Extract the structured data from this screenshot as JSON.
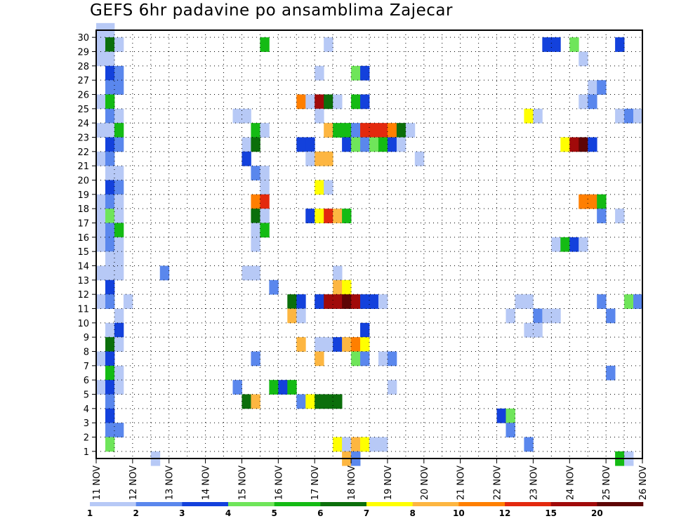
{
  "chart_data": {
    "type": "heatmap",
    "title": "GEFS 6hr padavine po ansamblima Zajecar",
    "xlabel": "",
    "ylabel": "",
    "x_ticks": [
      "11 NOV",
      "12 NOV",
      "13 NOV",
      "14 NOV",
      "15 NOV",
      "16 NOV",
      "17 NOV",
      "18 NOV",
      "19 NOV",
      "20 NOV",
      "21 NOV",
      "22 NOV",
      "23 NOV",
      "24 NOV",
      "25 NOV",
      "26 NOV"
    ],
    "y_ticks": [
      1,
      2,
      3,
      4,
      5,
      6,
      7,
      8,
      9,
      10,
      11,
      12,
      13,
      14,
      15,
      16,
      17,
      18,
      19,
      20,
      21,
      22,
      23,
      24,
      25,
      26,
      27,
      28,
      29,
      30
    ],
    "xlim": [
      0,
      60
    ],
    "ylim": [
      0,
      30
    ],
    "grid": true,
    "color_levels": [
      1,
      2,
      3,
      4,
      5,
      6,
      7,
      8,
      10,
      12,
      15,
      20
    ],
    "colors": [
      "#b7c9f6",
      "#5a87ed",
      "#1341dc",
      "#6fe55a",
      "#14bb14",
      "#0b6f0b",
      "#ffff00",
      "#fdb641",
      "#ff7f00",
      "#e3290e",
      "#a10a0a",
      "#5e0505"
    ],
    "legend_labels": [
      "1",
      "2",
      "3",
      "4",
      "5",
      "6",
      "7",
      "8",
      "10",
      "12",
      "15",
      "20"
    ],
    "cells": [
      [
        0,
        30,
        0
      ],
      [
        1,
        30,
        0
      ],
      [
        0,
        29,
        0
      ],
      [
        1,
        29,
        5
      ],
      [
        2,
        29,
        0
      ],
      [
        18,
        29,
        4
      ],
      [
        25,
        29,
        0
      ],
      [
        49,
        29,
        2
      ],
      [
        50,
        29,
        2
      ],
      [
        52,
        29,
        3
      ],
      [
        57,
        29,
        2
      ],
      [
        0,
        28,
        0
      ],
      [
        1,
        28,
        0
      ],
      [
        53,
        28,
        0
      ],
      [
        1,
        27,
        2
      ],
      [
        2,
        27,
        1
      ],
      [
        24,
        27,
        0
      ],
      [
        28,
        27,
        3
      ],
      [
        29,
        27,
        2
      ],
      [
        1,
        26,
        1
      ],
      [
        2,
        26,
        1
      ],
      [
        54,
        26,
        0
      ],
      [
        55,
        26,
        1
      ],
      [
        0,
        25,
        0
      ],
      [
        1,
        25,
        4
      ],
      [
        22,
        25,
        8
      ],
      [
        23,
        25,
        0
      ],
      [
        24,
        25,
        10
      ],
      [
        25,
        25,
        5
      ],
      [
        26,
        25,
        0
      ],
      [
        28,
        25,
        4
      ],
      [
        29,
        25,
        2
      ],
      [
        53,
        25,
        0
      ],
      [
        54,
        25,
        1
      ],
      [
        1,
        24,
        1
      ],
      [
        2,
        24,
        0
      ],
      [
        15,
        24,
        0
      ],
      [
        16,
        24,
        0
      ],
      [
        24,
        24,
        0
      ],
      [
        47,
        24,
        6
      ],
      [
        48,
        24,
        0
      ],
      [
        57,
        24,
        0
      ],
      [
        58,
        24,
        1
      ],
      [
        59,
        24,
        0
      ],
      [
        0,
        23,
        0
      ],
      [
        1,
        23,
        0
      ],
      [
        2,
        23,
        4
      ],
      [
        17,
        23,
        4
      ],
      [
        18,
        23,
        0
      ],
      [
        25,
        23,
        7
      ],
      [
        26,
        23,
        4
      ],
      [
        27,
        23,
        4
      ],
      [
        28,
        23,
        1
      ],
      [
        29,
        23,
        9
      ],
      [
        30,
        23,
        9
      ],
      [
        31,
        23,
        9
      ],
      [
        32,
        23,
        8
      ],
      [
        33,
        23,
        5
      ],
      [
        34,
        23,
        0
      ],
      [
        1,
        22,
        2
      ],
      [
        2,
        22,
        1
      ],
      [
        16,
        22,
        0
      ],
      [
        17,
        22,
        5
      ],
      [
        22,
        22,
        2
      ],
      [
        23,
        22,
        2
      ],
      [
        27,
        22,
        2
      ],
      [
        28,
        22,
        3
      ],
      [
        29,
        22,
        1
      ],
      [
        30,
        22,
        3
      ],
      [
        31,
        22,
        4
      ],
      [
        32,
        22,
        2
      ],
      [
        33,
        22,
        0
      ],
      [
        51,
        22,
        6
      ],
      [
        52,
        22,
        10
      ],
      [
        53,
        22,
        11
      ],
      [
        54,
        22,
        2
      ],
      [
        0,
        21,
        0
      ],
      [
        1,
        21,
        1
      ],
      [
        16,
        21,
        2
      ],
      [
        23,
        21,
        0
      ],
      [
        24,
        21,
        7
      ],
      [
        25,
        21,
        7
      ],
      [
        35,
        21,
        0
      ],
      [
        1,
        20,
        0
      ],
      [
        2,
        20,
        0
      ],
      [
        17,
        20,
        1
      ],
      [
        18,
        20,
        0
      ],
      [
        1,
        19,
        2
      ],
      [
        2,
        19,
        1
      ],
      [
        18,
        19,
        0
      ],
      [
        24,
        19,
        6
      ],
      [
        25,
        19,
        0
      ],
      [
        0,
        18,
        0
      ],
      [
        1,
        18,
        1
      ],
      [
        2,
        18,
        0
      ],
      [
        17,
        18,
        8
      ],
      [
        18,
        18,
        9
      ],
      [
        53,
        18,
        8
      ],
      [
        54,
        18,
        8
      ],
      [
        55,
        18,
        4
      ],
      [
        0,
        17,
        0
      ],
      [
        1,
        17,
        3
      ],
      [
        2,
        17,
        0
      ],
      [
        17,
        17,
        5
      ],
      [
        18,
        17,
        0
      ],
      [
        23,
        17,
        2
      ],
      [
        24,
        17,
        6
      ],
      [
        25,
        17,
        9
      ],
      [
        26,
        17,
        7
      ],
      [
        27,
        17,
        4
      ],
      [
        55,
        17,
        1
      ],
      [
        57,
        17,
        0
      ],
      [
        0,
        16,
        0
      ],
      [
        1,
        16,
        1
      ],
      [
        2,
        16,
        4
      ],
      [
        17,
        16,
        0
      ],
      [
        18,
        16,
        4
      ],
      [
        0,
        15,
        0
      ],
      [
        1,
        15,
        1
      ],
      [
        2,
        15,
        0
      ],
      [
        17,
        15,
        0
      ],
      [
        50,
        15,
        0
      ],
      [
        51,
        15,
        4
      ],
      [
        52,
        15,
        2
      ],
      [
        53,
        15,
        0
      ],
      [
        1,
        14,
        0
      ],
      [
        2,
        14,
        0
      ],
      [
        0,
        13,
        0
      ],
      [
        1,
        13,
        0
      ],
      [
        2,
        13,
        0
      ],
      [
        7,
        13,
        1
      ],
      [
        16,
        13,
        0
      ],
      [
        17,
        13,
        0
      ],
      [
        26,
        13,
        0
      ],
      [
        1,
        12,
        2
      ],
      [
        19,
        12,
        1
      ],
      [
        26,
        12,
        7
      ],
      [
        27,
        12,
        6
      ],
      [
        0,
        11,
        0
      ],
      [
        1,
        11,
        1
      ],
      [
        3,
        11,
        0
      ],
      [
        21,
        11,
        5
      ],
      [
        22,
        11,
        2
      ],
      [
        24,
        11,
        2
      ],
      [
        25,
        11,
        10
      ],
      [
        26,
        11,
        10
      ],
      [
        27,
        11,
        11
      ],
      [
        28,
        11,
        10
      ],
      [
        29,
        11,
        2
      ],
      [
        30,
        11,
        2
      ],
      [
        31,
        11,
        0
      ],
      [
        46,
        11,
        0
      ],
      [
        47,
        11,
        0
      ],
      [
        55,
        11,
        1
      ],
      [
        58,
        11,
        3
      ],
      [
        59,
        11,
        1
      ],
      [
        2,
        10,
        0
      ],
      [
        21,
        10,
        7
      ],
      [
        22,
        10,
        0
      ],
      [
        45,
        10,
        0
      ],
      [
        48,
        10,
        1
      ],
      [
        49,
        10,
        0
      ],
      [
        50,
        10,
        0
      ],
      [
        56,
        10,
        1
      ],
      [
        1,
        9,
        0
      ],
      [
        2,
        9,
        2
      ],
      [
        29,
        9,
        2
      ],
      [
        47,
        9,
        0
      ],
      [
        48,
        9,
        0
      ],
      [
        1,
        8,
        5
      ],
      [
        2,
        8,
        0
      ],
      [
        22,
        8,
        7
      ],
      [
        24,
        8,
        0
      ],
      [
        25,
        8,
        0
      ],
      [
        26,
        8,
        2
      ],
      [
        27,
        8,
        7
      ],
      [
        28,
        8,
        8
      ],
      [
        29,
        8,
        6
      ],
      [
        0,
        7,
        0
      ],
      [
        1,
        7,
        2
      ],
      [
        17,
        7,
        1
      ],
      [
        24,
        7,
        7
      ],
      [
        28,
        7,
        3
      ],
      [
        29,
        7,
        1
      ],
      [
        31,
        7,
        0
      ],
      [
        32,
        7,
        1
      ],
      [
        1,
        6,
        4
      ],
      [
        2,
        6,
        0
      ],
      [
        56,
        6,
        1
      ],
      [
        0,
        5,
        0
      ],
      [
        1,
        5,
        2
      ],
      [
        2,
        5,
        0
      ],
      [
        15,
        5,
        1
      ],
      [
        19,
        5,
        4
      ],
      [
        20,
        5,
        2
      ],
      [
        21,
        5,
        4
      ],
      [
        32,
        5,
        0
      ],
      [
        1,
        4,
        1
      ],
      [
        16,
        4,
        5
      ],
      [
        17,
        4,
        7
      ],
      [
        22,
        4,
        1
      ],
      [
        23,
        4,
        6
      ],
      [
        24,
        4,
        5
      ],
      [
        25,
        4,
        5
      ],
      [
        26,
        4,
        5
      ],
      [
        1,
        3,
        2
      ],
      [
        44,
        3,
        2
      ],
      [
        45,
        3,
        3
      ],
      [
        1,
        2,
        1
      ],
      [
        2,
        2,
        1
      ],
      [
        45,
        2,
        1
      ],
      [
        1,
        1,
        3
      ],
      [
        26,
        1,
        6
      ],
      [
        27,
        1,
        0
      ],
      [
        28,
        1,
        7
      ],
      [
        29,
        1,
        6
      ],
      [
        30,
        1,
        0
      ],
      [
        31,
        1,
        0
      ],
      [
        47,
        1,
        1
      ],
      [
        6,
        0,
        0
      ],
      [
        27,
        0,
        7
      ],
      [
        28,
        0,
        1
      ],
      [
        57,
        0,
        4
      ],
      [
        58,
        0,
        0
      ]
    ]
  }
}
